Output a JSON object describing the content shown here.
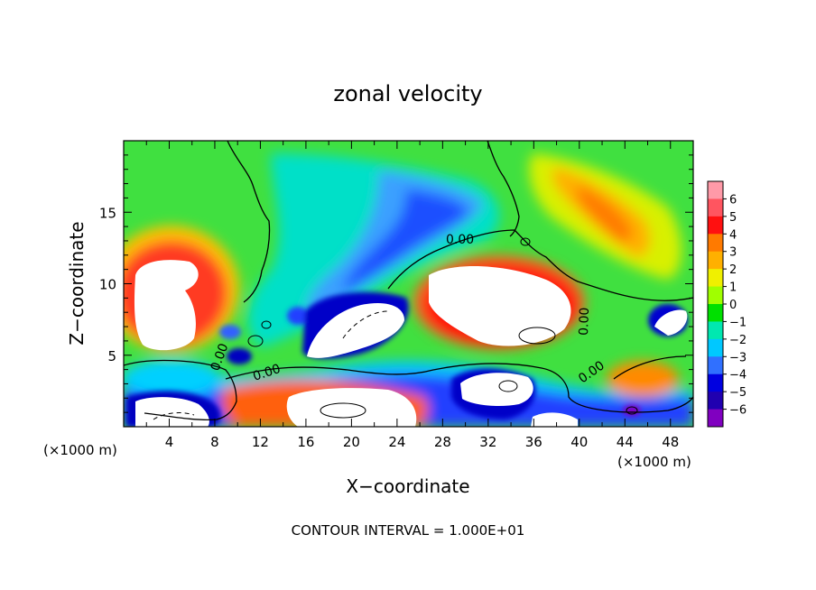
{
  "chart_data": {
    "type": "heatmap",
    "title": "zonal velocity",
    "xlabel": "X−coordinate",
    "ylabel": "Z−coordinate",
    "x_unit_left": "(×1000 m)",
    "x_unit_right": "(×1000 m)",
    "xlim": [
      0,
      50
    ],
    "ylim": [
      0,
      20
    ],
    "x_ticks": [
      "4",
      "8",
      "12",
      "16",
      "20",
      "24",
      "28",
      "32",
      "36",
      "40",
      "44",
      "48"
    ],
    "y_ticks": [
      "5",
      "10",
      "15"
    ],
    "colorbar": {
      "labels": [
        "6",
        "5",
        "4",
        "3",
        "2",
        "1",
        "0",
        "−1",
        "−2",
        "−3",
        "−4",
        "−5",
        "−6"
      ],
      "colors": [
        "#ff9aa8",
        "#ff5560",
        "#ff1010",
        "#ff7a00",
        "#ffb000",
        "#f0f000",
        "#a0ff00",
        "#00e000",
        "#00e8b0",
        "#00c8ff",
        "#3070ff",
        "#0000e0",
        "#2000b0",
        "#8000c0"
      ]
    },
    "contour_labels": [
      "0.00",
      "0.00",
      "0.00",
      "0.00",
      "0.00"
    ],
    "contour_interval_text": "CONTOUR INTERVAL = 1.000E+01"
  }
}
